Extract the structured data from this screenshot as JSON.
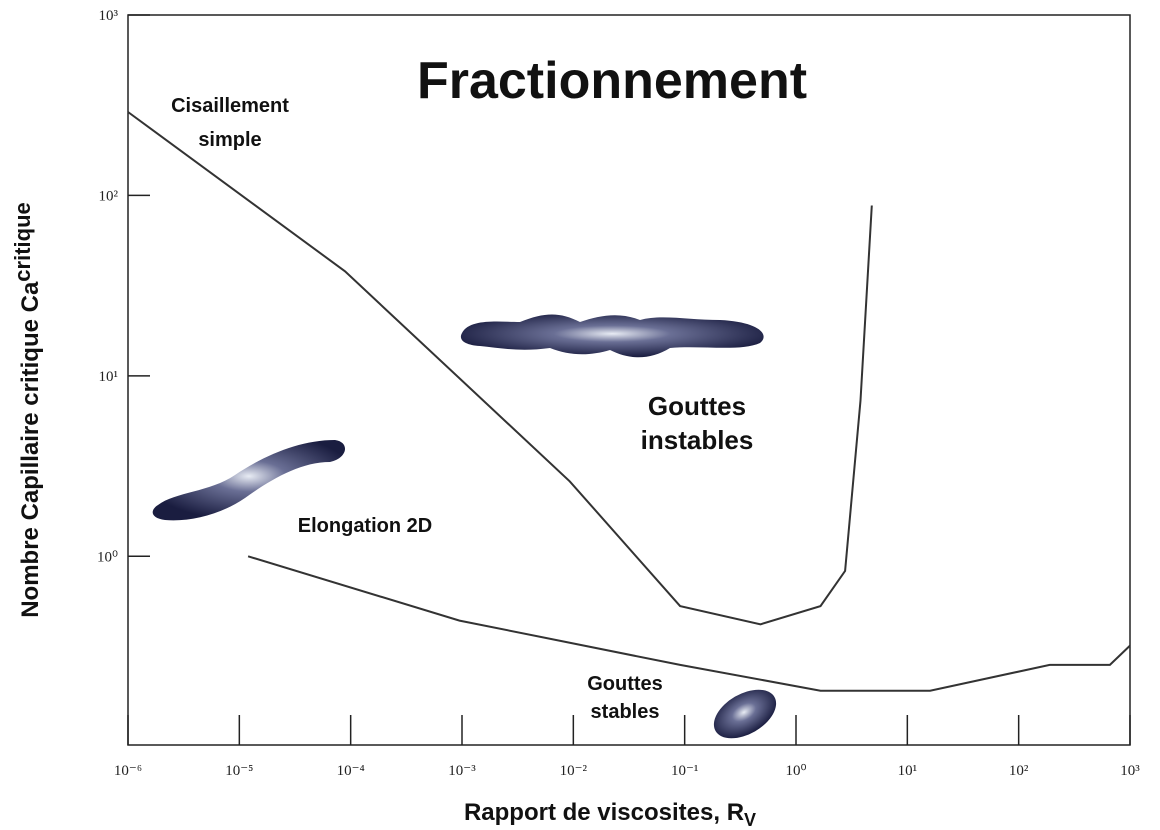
{
  "chart_data": {
    "type": "line",
    "title": "Fractionnement",
    "x_label": "Rapport de viscosites, R",
    "x_label_sub": "V",
    "y_label": "Nombre Capillaire critique Ca",
    "y_label_sub": "critique",
    "log_x": true,
    "log_y": true,
    "xlim": [
      1e-06,
      1000
    ],
    "ylim": [
      0.09,
      1000
    ],
    "xticks": [
      {
        "value": 1e-06,
        "label": "10⁻⁶"
      },
      {
        "value": 1e-05,
        "label": "10⁻⁵"
      },
      {
        "value": 0.0001,
        "label": "10⁻⁴"
      },
      {
        "value": 0.001,
        "label": "10⁻³"
      },
      {
        "value": 0.01,
        "label": "10⁻²"
      },
      {
        "value": 0.1,
        "label": "10⁻¹"
      },
      {
        "value": 1,
        "label": "10⁰"
      },
      {
        "value": 10,
        "label": "10¹"
      },
      {
        "value": 100,
        "label": "10²"
      },
      {
        "value": 1000,
        "label": "10³"
      }
    ],
    "yticks": [
      {
        "value": 1,
        "label": "10⁰"
      },
      {
        "value": 10,
        "label": "10¹"
      },
      {
        "value": 100,
        "label": "10²"
      },
      {
        "value": 1000,
        "label": "10³"
      }
    ],
    "series": [
      {
        "color": "#333333",
        "x": [
          1e-06,
          8.9e-05,
          0.0093,
          0.091,
          0.48,
          1.66,
          2.76,
          3.8,
          4.8
        ],
        "values": [
          290,
          38,
          2.6,
          0.53,
          0.42,
          0.53,
          0.83,
          7.3,
          88
        ]
      },
      {
        "color": "#333333",
        "x": [
          1.2e-05,
          0.00095,
          0.091,
          1.66,
          16,
          190,
          660,
          1000
        ],
        "values": [
          1,
          0.44,
          0.25,
          0.18,
          0.18,
          0.25,
          0.25,
          0.32
        ]
      }
    ],
    "annotations": [
      {
        "lines": [
          "Cisaillement",
          "simple"
        ]
      },
      {
        "lines": [
          "Gouttes",
          "instables"
        ]
      },
      {
        "lines": [
          "Elongation 2D"
        ]
      },
      {
        "lines": [
          "Gouttes",
          "stables"
        ]
      }
    ]
  }
}
